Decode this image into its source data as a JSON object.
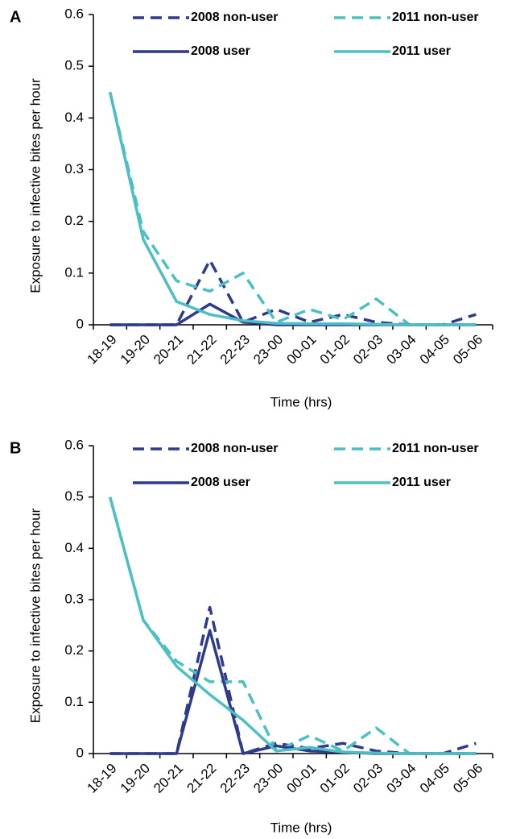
{
  "chart_data": [
    {
      "type": "line",
      "panel": "A",
      "xlabel": "Time (hrs)",
      "ylabel": "Exposure to infective bites per hour",
      "categories": [
        "18-19",
        "19-20",
        "20-21",
        "21-22",
        "22-23",
        "23-00",
        "00-01",
        "01-02",
        "02-03",
        "03-04",
        "04-05",
        "05-06"
      ],
      "ylim": [
        0,
        0.6
      ],
      "yticks": [
        0,
        0.1,
        0.2,
        0.3,
        0.4,
        0.5,
        0.6
      ],
      "grid": false,
      "series": [
        {
          "name": "2008 non-user",
          "color": "#2e3a8c",
          "dashed": true,
          "values": [
            0,
            0,
            0,
            0.125,
            0.005,
            0.03,
            0.005,
            0.02,
            0.005,
            0,
            0,
            0.02
          ]
        },
        {
          "name": "2011 non-user",
          "color": "#4bbfc3",
          "dashed": true,
          "values": [
            0.45,
            0.18,
            0.085,
            0.065,
            0.1,
            0.005,
            0.03,
            0.01,
            0.05,
            0,
            0,
            0
          ]
        },
        {
          "name": "2008 user",
          "color": "#2e3a8c",
          "dashed": false,
          "values": [
            0,
            0,
            0,
            0.04,
            0.005,
            0,
            0,
            0,
            0,
            0,
            0,
            0
          ]
        },
        {
          "name": "2011 user",
          "color": "#4bbfc3",
          "dashed": false,
          "values": [
            0.45,
            0.165,
            0.045,
            0.02,
            0.008,
            0.003,
            0.002,
            0.002,
            0.001,
            0,
            0,
            0
          ]
        }
      ]
    },
    {
      "type": "line",
      "panel": "B",
      "xlabel": "Time (hrs)",
      "ylabel": "Exposure to infective bites per hour",
      "categories": [
        "18-19",
        "19-20",
        "20-21",
        "21-22",
        "22-23",
        "23-00",
        "00-01",
        "01-02",
        "02-03",
        "03-04",
        "04-05",
        "05-06"
      ],
      "ylim": [
        0,
        0.6
      ],
      "yticks": [
        0,
        0.1,
        0.2,
        0.3,
        0.4,
        0.5,
        0.6
      ],
      "grid": false,
      "series": [
        {
          "name": "2008 non-user",
          "color": "#2e3a8c",
          "dashed": true,
          "values": [
            0,
            0,
            0,
            0.285,
            0,
            0.02,
            0.01,
            0.02,
            0.005,
            0,
            0,
            0.02
          ]
        },
        {
          "name": "2011 non-user",
          "color": "#4bbfc3",
          "dashed": true,
          "values": [
            0.5,
            0.26,
            0.18,
            0.14,
            0.14,
            0.005,
            0.035,
            0.005,
            0.05,
            0,
            0,
            0
          ]
        },
        {
          "name": "2008 user",
          "color": "#2e3a8c",
          "dashed": false,
          "values": [
            0,
            0,
            0,
            0.24,
            0,
            0.015,
            0.005,
            0.003,
            0,
            0,
            0,
            0
          ]
        },
        {
          "name": "2011 user",
          "color": "#4bbfc3",
          "dashed": false,
          "values": [
            0.5,
            0.26,
            0.17,
            0.115,
            0.065,
            0.005,
            0.012,
            0.003,
            0.001,
            0,
            0,
            0
          ]
        }
      ]
    }
  ]
}
